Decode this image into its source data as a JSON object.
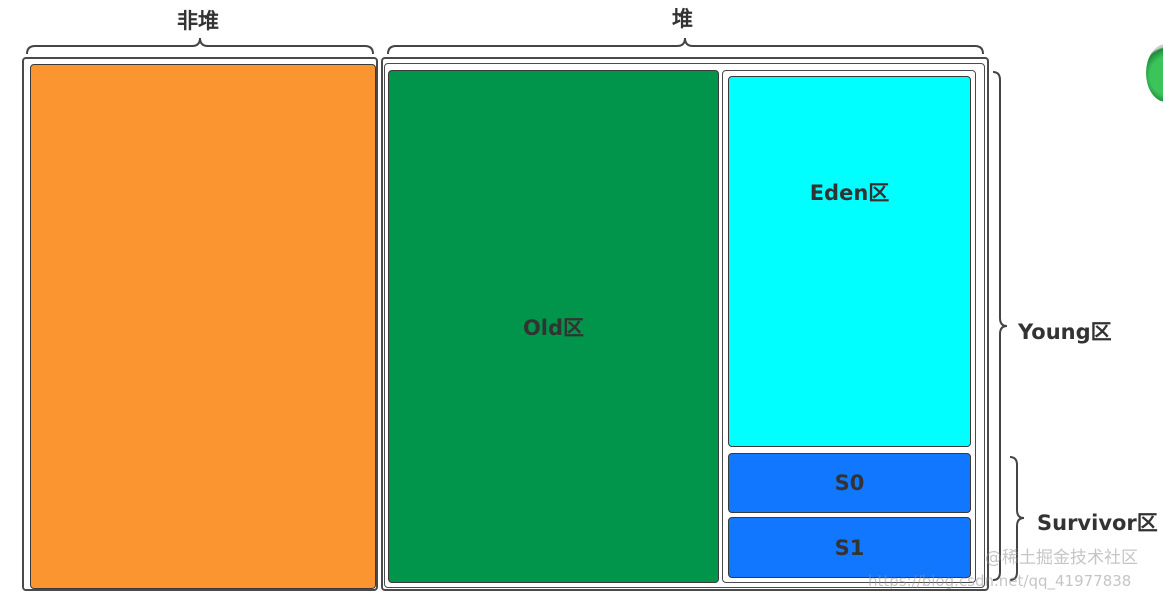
{
  "labels": {
    "non_heap": "非堆",
    "heap": "堆",
    "old": "Old区",
    "eden": "Eden区",
    "s0": "S0",
    "s1": "S1",
    "young": "Young区",
    "survivor": "Survivor区"
  },
  "colors": {
    "non_heap": "#fb9530",
    "old": "#00954b",
    "eden": "#00ffff",
    "survivor": "#1177ff"
  },
  "watermark": {
    "url": "https://blog.csdn.net/qq_41977838",
    "site": "@稀土掘金技术社区"
  }
}
